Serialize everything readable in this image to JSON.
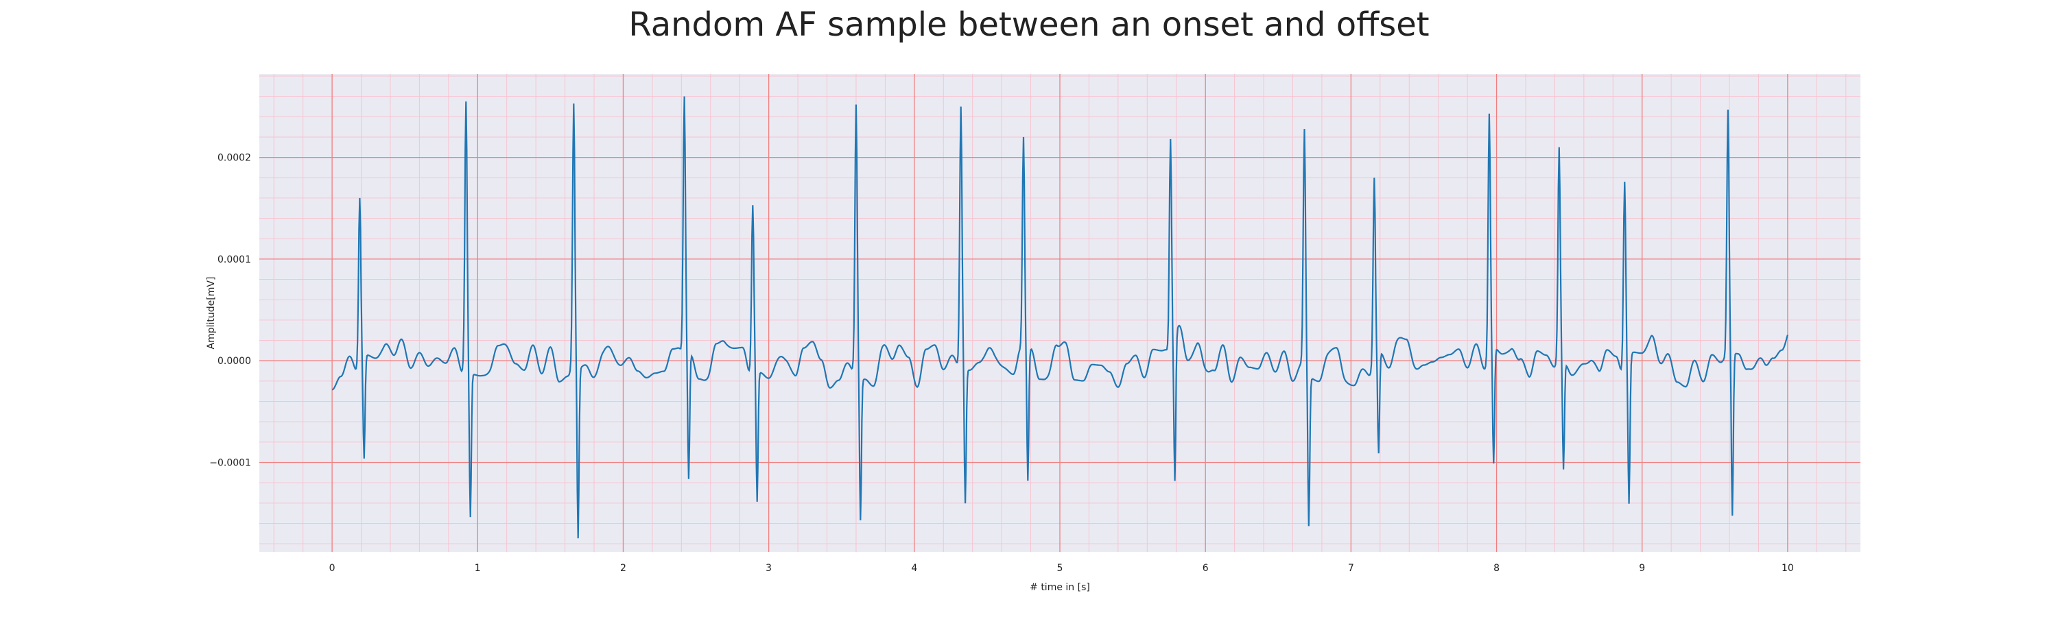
{
  "chart_data": {
    "type": "line",
    "title": "Random AF sample between an onset and offset",
    "xlabel": "# time in [s]",
    "ylabel": "Amplitude[mV]",
    "xlim": [
      -0.5,
      10.5
    ],
    "ylim": [
      -0.000188,
      0.000282
    ],
    "x_ticks": [
      0,
      1,
      2,
      3,
      4,
      5,
      6,
      7,
      8,
      9,
      10
    ],
    "x_tick_labels": [
      "0",
      "1",
      "2",
      "3",
      "4",
      "5",
      "6",
      "7",
      "8",
      "9",
      "10"
    ],
    "y_ticks": [
      -0.0001,
      0.0,
      0.0001,
      0.0002
    ],
    "y_tick_labels": [
      "−0.0001",
      "0.0000",
      "0.0001",
      "0.0002"
    ],
    "grid": true,
    "major_grid_color": "#f08080",
    "minor_grid_color": "#f7c3d0",
    "background_color": "#eaeaf2",
    "line_color": "#1f77b4",
    "beats": [
      {
        "t": 0.19,
        "r": 0.00016,
        "s": -9.7e-05
      },
      {
        "t": 0.92,
        "r": 0.000255,
        "s": -0.000142
      },
      {
        "t": 1.66,
        "r": 0.000253,
        "s": -0.000167
      },
      {
        "t": 2.42,
        "r": 0.00026,
        "s": -0.000123
      },
      {
        "t": 2.89,
        "r": 0.000153,
        "s": -0.000127
      },
      {
        "t": 3.6,
        "r": 0.000252,
        "s": -0.000142
      },
      {
        "t": 4.32,
        "r": 0.00025,
        "s": -0.000132
      },
      {
        "t": 4.75,
        "r": 0.00022,
        "s": -0.00013
      },
      {
        "t": 5.76,
        "r": 0.000218,
        "s": -0.00014
      },
      {
        "t": 6.68,
        "r": 0.000228,
        "s": -0.000148
      },
      {
        "t": 7.16,
        "r": 0.00018,
        "s": -9.7e-05
      },
      {
        "t": 7.95,
        "r": 0.000243,
        "s": -0.000113
      },
      {
        "t": 8.43,
        "r": 0.00021,
        "s": -0.000106
      },
      {
        "t": 8.88,
        "r": 0.000176,
        "s": -0.000135
      },
      {
        "t": 9.59,
        "r": 0.000247,
        "s": -0.00016
      }
    ],
    "x_range": [
      0,
      10
    ],
    "baseline_start": -2e-05,
    "baseline_end": -1.2e-05
  }
}
